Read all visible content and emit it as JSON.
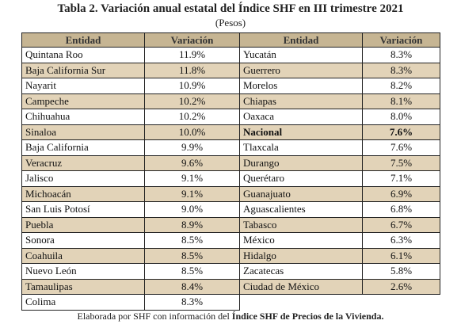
{
  "title": "Tabla 2. Variación anual estatal del Índice SHF en III trimestre 2021",
  "subtitle": "(Pesos)",
  "headers": [
    "Entidad",
    "Variación",
    "Entidad",
    "Variación"
  ],
  "left_rows": [
    [
      "Quintana Roo",
      "11.9%"
    ],
    [
      "Baja California Sur",
      "11.8%"
    ],
    [
      "Nayarit",
      "10.9%"
    ],
    [
      "Campeche",
      "10.2%"
    ],
    [
      "Chihuahua",
      "10.2%"
    ],
    [
      "Sinaloa",
      "10.0%"
    ],
    [
      "Baja California",
      "9.9%"
    ],
    [
      "Veracruz",
      "9.6%"
    ],
    [
      "Jalisco",
      "9.1%"
    ],
    [
      "Michoacán",
      "9.1%"
    ],
    [
      "San Luis Potosí",
      "9.0%"
    ],
    [
      "Puebla",
      "8.9%"
    ],
    [
      "Sonora",
      "8.5%"
    ],
    [
      "Coahuila",
      "8.5%"
    ],
    [
      "Nuevo León",
      "8.5%"
    ],
    [
      "Tamaulipas",
      "8.4%"
    ],
    [
      "Colima",
      "8.3%"
    ]
  ],
  "right_rows": [
    [
      "Yucatán",
      "8.3%"
    ],
    [
      "Guerrero",
      "8.3%"
    ],
    [
      "Morelos",
      "8.2%"
    ],
    [
      "Chiapas",
      "8.1%"
    ],
    [
      "Oaxaca",
      "8.0%"
    ],
    [
      "Nacional",
      "7.6%"
    ],
    [
      "Tlaxcala",
      "7.6%"
    ],
    [
      "Durango",
      "7.5%"
    ],
    [
      "Querétaro",
      "7.1%"
    ],
    [
      "Guanajuato",
      "6.9%"
    ],
    [
      "Aguascalientes",
      "6.8%"
    ],
    [
      "Tabasco",
      "6.7%"
    ],
    [
      "México",
      "6.3%"
    ],
    [
      "Hidalgo",
      "6.1%"
    ],
    [
      "Zacatecas",
      "5.8%"
    ],
    [
      "Ciudad de México",
      "2.6%"
    ]
  ],
  "bold_right_row": "Nacional",
  "footer": [
    "Elaborada por SHF con información del ",
    "Índice SHF de Precios de la Vivienda."
  ]
}
